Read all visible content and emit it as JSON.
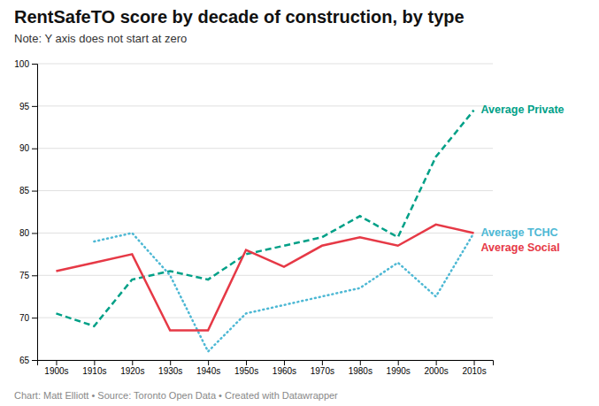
{
  "chart_data": {
    "type": "line",
    "title": "RentSafeTO score by decade of construction, by type",
    "subtitle": "Note: Y axis does not start at zero",
    "caption": "Chart: Matt Elliott • Source: Toronto Open Data • Created with Datawrapper",
    "categories": [
      "1900s",
      "1910s",
      "1920s",
      "1930s",
      "1940s",
      "1950s",
      "1960s",
      "1970s",
      "1980s",
      "1990s",
      "2000s",
      "2010s"
    ],
    "ylim": [
      65,
      100
    ],
    "yticks": [
      65,
      70,
      75,
      80,
      85,
      90,
      95,
      100
    ],
    "grid": true,
    "series": [
      {
        "name": "Average Private",
        "color": "#00a087",
        "line_style": "dashed",
        "values": [
          70.5,
          69.0,
          74.5,
          75.5,
          74.5,
          77.5,
          78.5,
          79.5,
          82.0,
          79.5,
          89.0,
          94.5
        ]
      },
      {
        "name": "Average TCHC",
        "color": "#4db8d4",
        "line_style": "dotted",
        "values": [
          null,
          79.0,
          80.0,
          75.0,
          66.0,
          70.5,
          71.5,
          72.5,
          73.5,
          76.5,
          72.5,
          80.0
        ]
      },
      {
        "name": "Average Social",
        "color": "#e63946",
        "line_style": "solid",
        "values": [
          75.5,
          76.5,
          77.5,
          68.5,
          68.5,
          78.0,
          76.0,
          78.5,
          79.5,
          78.5,
          81.0,
          80.0
        ]
      }
    ]
  }
}
